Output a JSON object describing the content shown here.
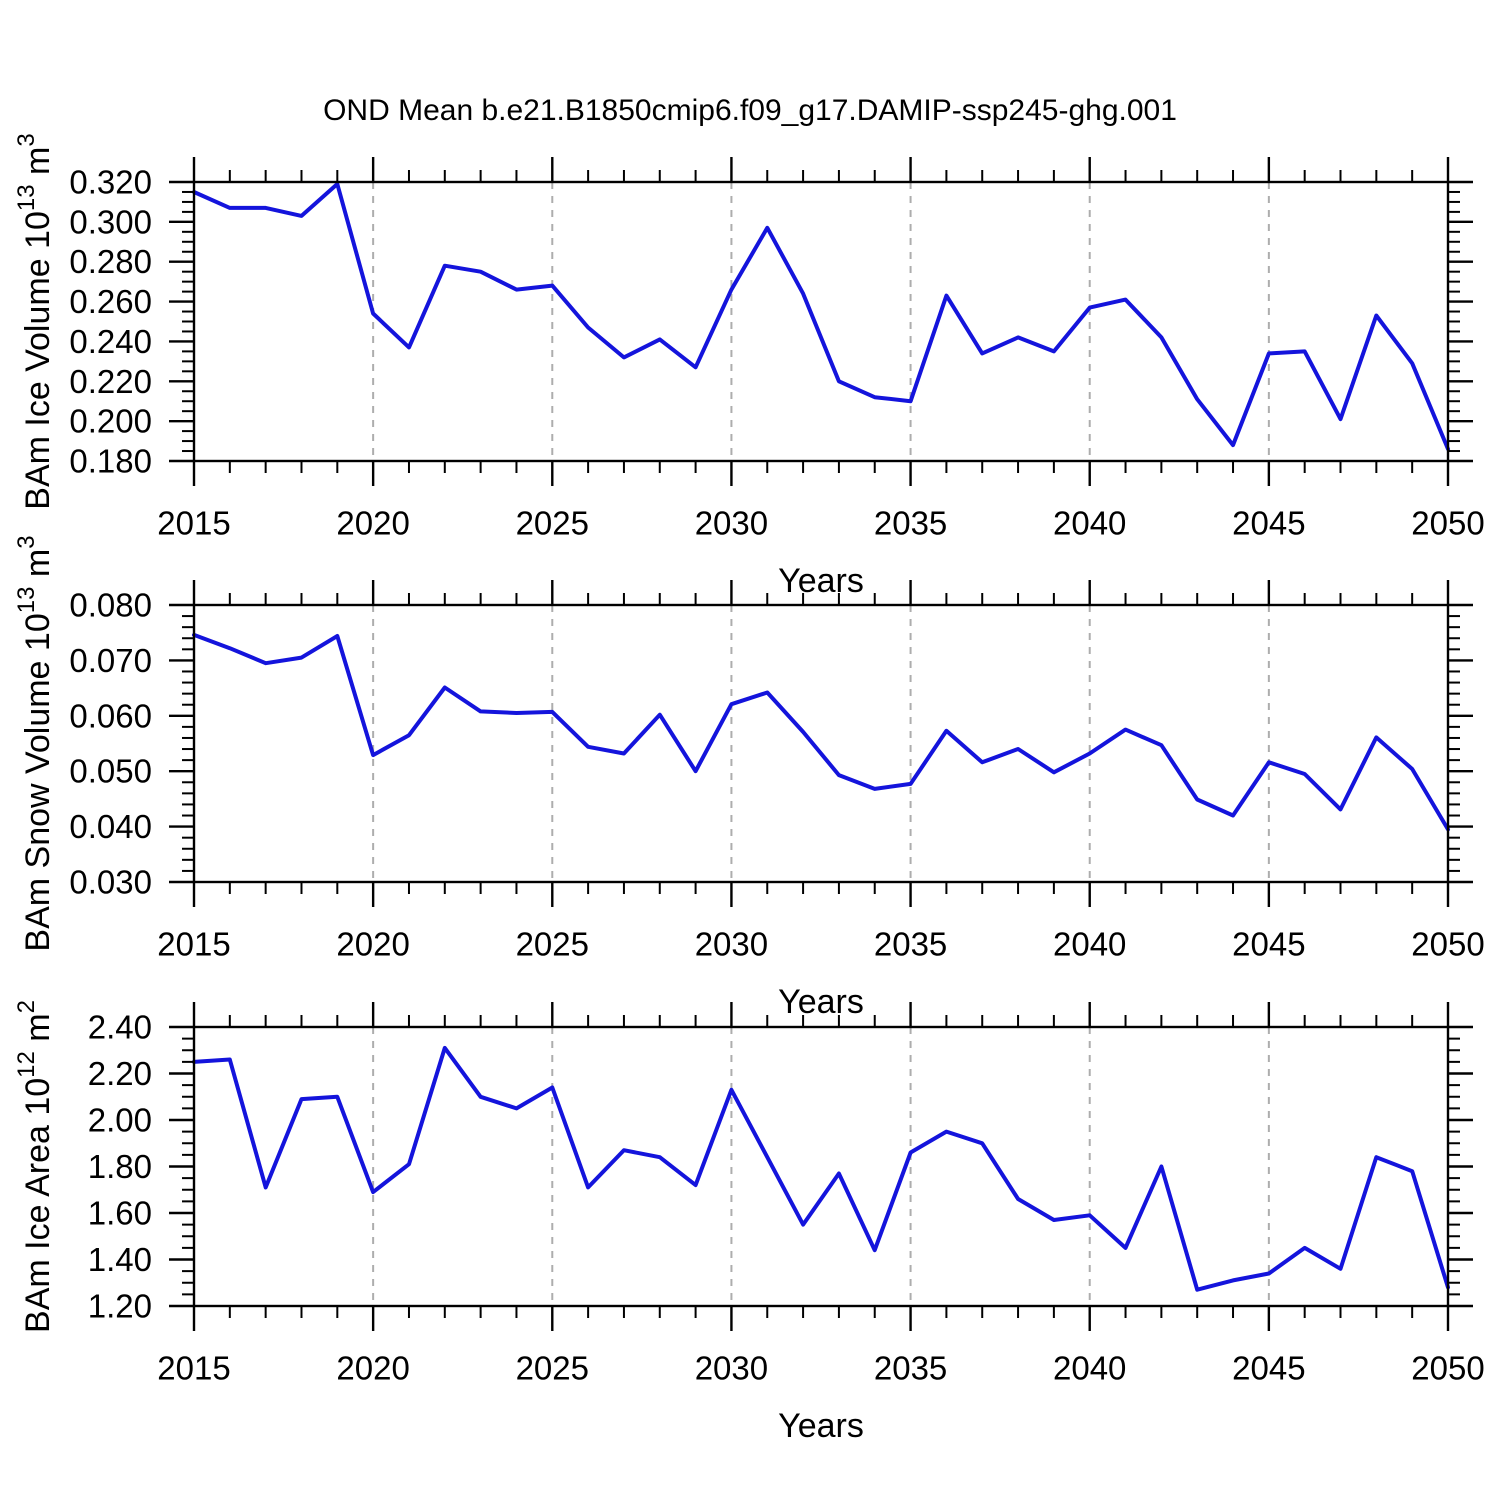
{
  "title": "OND Mean b.e21.B1850cmip6.f09_g17.DAMIP-ssp245-ghg.001",
  "colors": {
    "line": "#1414DC",
    "grid": "#ADADAD",
    "axis": "#000000",
    "text": "#000000",
    "background": "#FFFFFF"
  },
  "chart_data": [
    {
      "type": "line",
      "ylabel": "BAm Ice Volume 10^13 m^3",
      "ylabel_parts": [
        [
          "BAm Ice Volume 10",
          false
        ],
        [
          "13",
          true
        ],
        [
          " m",
          false
        ],
        [
          "3",
          true
        ]
      ],
      "xlabel": "Years",
      "x": [
        2015,
        2016,
        2017,
        2018,
        2019,
        2020,
        2021,
        2022,
        2023,
        2024,
        2025,
        2026,
        2027,
        2028,
        2029,
        2030,
        2031,
        2032,
        2033,
        2034,
        2035,
        2036,
        2037,
        2038,
        2039,
        2040,
        2041,
        2042,
        2043,
        2044,
        2045,
        2046,
        2047,
        2048,
        2049,
        2050
      ],
      "values": [
        0.315,
        0.307,
        0.307,
        0.303,
        0.319,
        0.254,
        0.237,
        0.278,
        0.275,
        0.266,
        0.268,
        0.247,
        0.232,
        0.241,
        0.227,
        0.266,
        0.297,
        0.264,
        0.22,
        0.212,
        0.21,
        0.263,
        0.234,
        0.242,
        0.235,
        0.257,
        0.261,
        0.242,
        0.211,
        0.188,
        0.234,
        0.235,
        0.201,
        0.253,
        0.229,
        0.186
      ],
      "ylim": [
        0.18,
        0.32
      ],
      "ytick_step": 0.02,
      "yminor_step": 0.005,
      "ydecimals": 3,
      "xlim": [
        2015,
        2050
      ],
      "xtick_step": 5,
      "xminor_step": 1,
      "grid_x": [
        2020,
        2025,
        2030,
        2035,
        2040,
        2045
      ],
      "grid_style": "vertical-dashed",
      "legend": null
    },
    {
      "type": "line",
      "ylabel": "BAm Snow Volume 10^13 m^3",
      "ylabel_parts": [
        [
          "BAm Snow Volume 10",
          false
        ],
        [
          "13",
          true
        ],
        [
          " m",
          false
        ],
        [
          "3",
          true
        ]
      ],
      "xlabel": "Years",
      "x": [
        2015,
        2016,
        2017,
        2018,
        2019,
        2020,
        2021,
        2022,
        2023,
        2024,
        2025,
        2026,
        2027,
        2028,
        2029,
        2030,
        2031,
        2032,
        2033,
        2034,
        2035,
        2036,
        2037,
        2038,
        2039,
        2040,
        2041,
        2042,
        2043,
        2044,
        2045,
        2046,
        2047,
        2048,
        2049,
        2050
      ],
      "values": [
        0.0746,
        0.0722,
        0.0695,
        0.0705,
        0.0744,
        0.0529,
        0.0565,
        0.0651,
        0.0608,
        0.0605,
        0.0607,
        0.0544,
        0.0532,
        0.0602,
        0.05,
        0.0621,
        0.0642,
        0.0571,
        0.0493,
        0.0468,
        0.0477,
        0.0573,
        0.0516,
        0.054,
        0.0498,
        0.0532,
        0.0575,
        0.0547,
        0.0449,
        0.042,
        0.0516,
        0.0495,
        0.0431,
        0.0561,
        0.0504,
        0.0395
      ],
      "ylim": [
        0.03,
        0.08
      ],
      "ytick_step": 0.01,
      "yminor_step": 0.002,
      "ydecimals": 3,
      "xlim": [
        2015,
        2050
      ],
      "xtick_step": 5,
      "xminor_step": 1,
      "grid_x": [
        2020,
        2025,
        2030,
        2035,
        2040,
        2045
      ],
      "grid_style": "vertical-dashed",
      "legend": null
    },
    {
      "type": "line",
      "ylabel": "BAm Ice Area 10^12 m^2",
      "ylabel_parts": [
        [
          "BAm Ice Area 10",
          false
        ],
        [
          "12",
          true
        ],
        [
          " m",
          false
        ],
        [
          "2",
          true
        ]
      ],
      "xlabel": "Years",
      "x": [
        2015,
        2016,
        2017,
        2018,
        2019,
        2020,
        2021,
        2022,
        2023,
        2024,
        2025,
        2026,
        2027,
        2028,
        2029,
        2030,
        2031,
        2032,
        2033,
        2034,
        2035,
        2036,
        2037,
        2038,
        2039,
        2040,
        2041,
        2042,
        2043,
        2044,
        2045,
        2046,
        2047,
        2048,
        2049,
        2050
      ],
      "values": [
        2.25,
        2.26,
        1.71,
        2.09,
        2.1,
        1.69,
        1.81,
        2.31,
        2.1,
        2.05,
        2.14,
        1.71,
        1.87,
        1.84,
        1.72,
        2.13,
        1.84,
        1.55,
        1.77,
        1.44,
        1.86,
        1.95,
        1.9,
        1.66,
        1.57,
        1.59,
        1.45,
        1.8,
        1.27,
        1.31,
        1.34,
        1.45,
        1.36,
        1.84,
        1.78,
        1.28
      ],
      "ylim": [
        1.2,
        2.4
      ],
      "ytick_step": 0.2,
      "yminor_step": 0.05,
      "ydecimals": 2,
      "xlim": [
        2015,
        2050
      ],
      "xtick_step": 5,
      "xminor_step": 1,
      "grid_x": [
        2020,
        2025,
        2030,
        2035,
        2040,
        2045
      ],
      "grid_style": "vertical-dashed",
      "legend": null
    }
  ]
}
